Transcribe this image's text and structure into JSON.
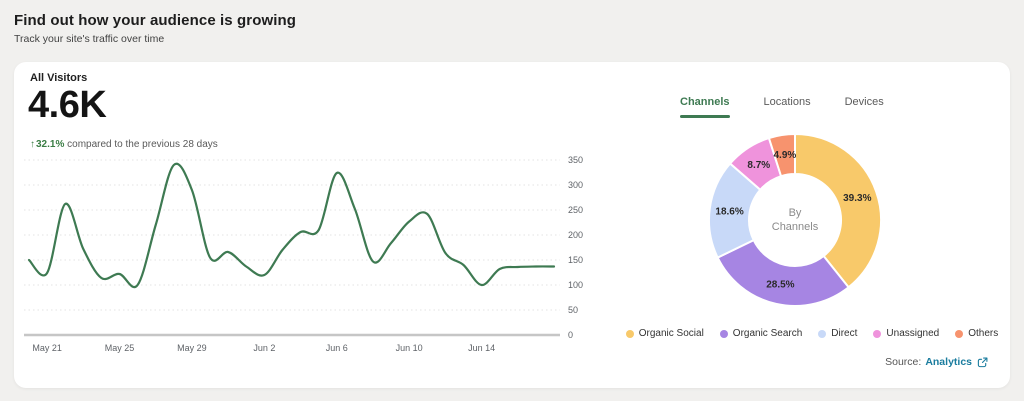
{
  "header": {
    "title": "Find out how your audience is growing",
    "subtitle": "Track your site's traffic over time"
  },
  "stats": {
    "label": "All Visitors",
    "value": "4.6K",
    "trend": "32.1%",
    "trend_color": "#3a7d44",
    "compare_text": "compared to the previous 28 days"
  },
  "breakdown": {
    "tabs": [
      "Channels",
      "Locations",
      "Devices"
    ],
    "active_tab": "Channels"
  },
  "source": {
    "label": "Source:",
    "link_text": "Analytics",
    "link_color": "#1a7c9e"
  },
  "chart_data": [
    {
      "type": "line",
      "title": "All Visitors over time",
      "line_color": "#3e7a52",
      "grid": "dotted horizontal",
      "ylim": [
        0,
        350
      ],
      "y_ticks": [
        0,
        50,
        100,
        150,
        200,
        250,
        300,
        350
      ],
      "x_tick_labels": [
        "May 21",
        "May 25",
        "May 29",
        "Jun 2",
        "Jun 6",
        "Jun 10",
        "Jun 14"
      ],
      "x_tick_indices": [
        1,
        5,
        9,
        13,
        17,
        21,
        25
      ],
      "values": [
        150,
        124,
        262,
        172,
        114,
        122,
        100,
        220,
        340,
        290,
        155,
        166,
        137,
        120,
        170,
        206,
        210,
        324,
        252,
        147,
        184,
        227,
        242,
        164,
        140,
        100,
        132,
        136,
        137,
        137
      ]
    },
    {
      "type": "pie",
      "subtype": "donut",
      "title": "By Channels",
      "center_lines": [
        "By",
        "Channels"
      ],
      "legend_position": "bottom",
      "segments": [
        {
          "label": "Organic Social",
          "value": 39.3,
          "color": "#F8C96A"
        },
        {
          "label": "Organic Search",
          "value": 28.5,
          "color": "#A685E3"
        },
        {
          "label": "Direct",
          "value": 18.6,
          "color": "#C8D9F8"
        },
        {
          "label": "Unassigned",
          "value": 8.7,
          "color": "#EF93DC"
        },
        {
          "label": "Others",
          "value": 4.9,
          "color": "#F7936E"
        }
      ]
    }
  ]
}
